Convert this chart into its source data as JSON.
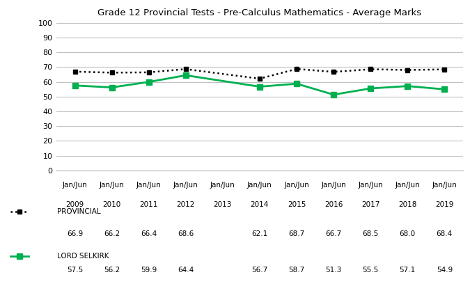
{
  "title": "Grade 12 Provincial Tests - Pre-Calculus Mathematics - Average Marks",
  "x_labels_line1": [
    "Jan/Jun",
    "Jan/Jun",
    "Jan/Jun",
    "Jan/Jun",
    "Jan/Jun",
    "Jan/Jun",
    "Jan/Jun",
    "Jan/Jun",
    "Jan/Jun",
    "Jan/Jun",
    "Jan/Jun"
  ],
  "x_labels_line2": [
    "2009",
    "2010",
    "2011",
    "2012",
    "2013",
    "2014",
    "2015",
    "2016",
    "2017",
    "2018",
    "2019"
  ],
  "x_positions": [
    0,
    1,
    2,
    3,
    4,
    5,
    6,
    7,
    8,
    9,
    10
  ],
  "provincial_x": [
    0,
    1,
    2,
    3,
    5,
    6,
    7,
    8,
    9,
    10
  ],
  "provincial_y": [
    66.9,
    66.2,
    66.4,
    68.6,
    62.1,
    68.7,
    66.7,
    68.5,
    68.0,
    68.4
  ],
  "selkirk_x": [
    0,
    1,
    2,
    3,
    5,
    6,
    7,
    8,
    9,
    10
  ],
  "selkirk_y": [
    57.5,
    56.2,
    59.9,
    64.4,
    56.7,
    58.7,
    51.3,
    55.5,
    57.1,
    54.9
  ],
  "provincial_label": "PROVINCIAL",
  "selkirk_label": "LORD SELKIRK",
  "provincial_color": "#000000",
  "selkirk_color": "#00b050",
  "ylim": [
    0,
    100
  ],
  "yticks": [
    0,
    10,
    20,
    30,
    40,
    50,
    60,
    70,
    80,
    90,
    100
  ],
  "table_provincial": [
    "66.9",
    "66.2",
    "66.4",
    "68.6",
    "",
    "62.1",
    "68.7",
    "66.7",
    "68.5",
    "68.0",
    "68.4"
  ],
  "table_selkirk": [
    "57.5",
    "56.2",
    "59.9",
    "64.4",
    "",
    "56.7",
    "58.7",
    "51.3",
    "55.5",
    "57.1",
    "54.9"
  ],
  "background_color": "#ffffff",
  "grid_color": "#c0c0c0"
}
